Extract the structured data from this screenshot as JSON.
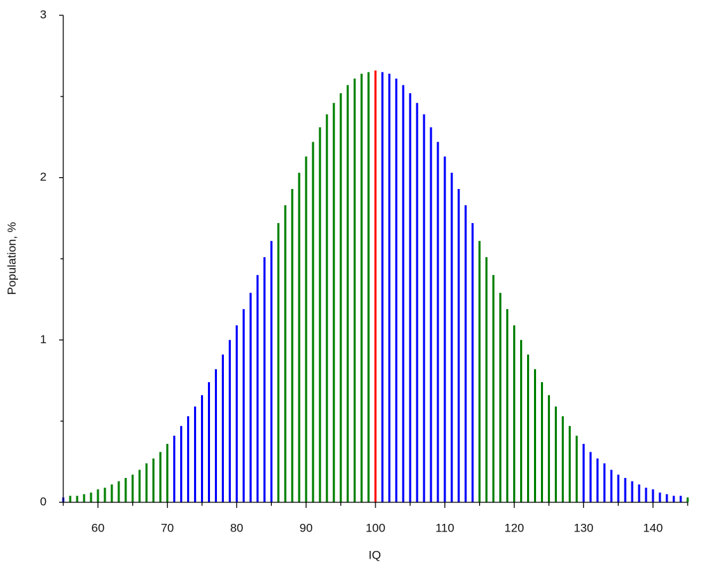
{
  "chart_data": {
    "type": "bar",
    "x_label": "IQ",
    "y_label": "Population, %",
    "x": [
      55,
      56,
      57,
      58,
      59,
      60,
      61,
      62,
      63,
      64,
      65,
      66,
      67,
      68,
      69,
      70,
      71,
      72,
      73,
      74,
      75,
      76,
      77,
      78,
      79,
      80,
      81,
      82,
      83,
      84,
      85,
      86,
      87,
      88,
      89,
      90,
      91,
      92,
      93,
      94,
      95,
      96,
      97,
      98,
      99,
      100,
      101,
      102,
      103,
      104,
      105,
      106,
      107,
      108,
      109,
      110,
      111,
      112,
      113,
      114,
      115,
      116,
      117,
      118,
      119,
      120,
      121,
      122,
      123,
      124,
      125,
      126,
      127,
      128,
      129,
      130,
      131,
      132,
      133,
      134,
      135,
      136,
      137,
      138,
      139,
      140,
      141,
      142,
      143,
      144,
      145
    ],
    "values": [
      0.03,
      0.04,
      0.04,
      0.05,
      0.06,
      0.08,
      0.09,
      0.11,
      0.13,
      0.15,
      0.17,
      0.2,
      0.24,
      0.27,
      0.31,
      0.36,
      0.41,
      0.47,
      0.53,
      0.59,
      0.66,
      0.74,
      0.82,
      0.91,
      1.0,
      1.09,
      1.19,
      1.29,
      1.4,
      1.51,
      1.61,
      1.72,
      1.83,
      1.93,
      2.03,
      2.13,
      2.22,
      2.31,
      2.39,
      2.46,
      2.52,
      2.57,
      2.61,
      2.64,
      2.65,
      2.66,
      2.65,
      2.64,
      2.61,
      2.57,
      2.52,
      2.46,
      2.39,
      2.31,
      2.22,
      2.13,
      2.03,
      1.93,
      1.83,
      1.72,
      1.61,
      1.51,
      1.4,
      1.29,
      1.19,
      1.09,
      1.0,
      0.91,
      0.82,
      0.74,
      0.66,
      0.59,
      0.53,
      0.47,
      0.41,
      0.36,
      0.31,
      0.27,
      0.24,
      0.2,
      0.17,
      0.15,
      0.13,
      0.11,
      0.09,
      0.08,
      0.06,
      0.05,
      0.04,
      0.04,
      0.03
    ],
    "colors": [
      "#0000ff",
      "#008000",
      "#008000",
      "#008000",
      "#008000",
      "#008000",
      "#008000",
      "#008000",
      "#008000",
      "#008000",
      "#008000",
      "#008000",
      "#008000",
      "#008000",
      "#008000",
      "#008000",
      "#0000ff",
      "#0000ff",
      "#0000ff",
      "#0000ff",
      "#0000ff",
      "#0000ff",
      "#0000ff",
      "#0000ff",
      "#0000ff",
      "#0000ff",
      "#0000ff",
      "#0000ff",
      "#0000ff",
      "#0000ff",
      "#0000ff",
      "#008000",
      "#008000",
      "#008000",
      "#008000",
      "#008000",
      "#008000",
      "#008000",
      "#008000",
      "#008000",
      "#008000",
      "#008000",
      "#008000",
      "#008000",
      "#008000",
      "#ff0000",
      "#0000ff",
      "#0000ff",
      "#0000ff",
      "#0000ff",
      "#0000ff",
      "#0000ff",
      "#0000ff",
      "#0000ff",
      "#0000ff",
      "#0000ff",
      "#0000ff",
      "#0000ff",
      "#0000ff",
      "#0000ff",
      "#008000",
      "#008000",
      "#008000",
      "#008000",
      "#008000",
      "#008000",
      "#008000",
      "#008000",
      "#008000",
      "#008000",
      "#008000",
      "#008000",
      "#008000",
      "#008000",
      "#008000",
      "#0000ff",
      "#0000ff",
      "#0000ff",
      "#0000ff",
      "#0000ff",
      "#0000ff",
      "#0000ff",
      "#0000ff",
      "#0000ff",
      "#0000ff",
      "#0000ff",
      "#0000ff",
      "#0000ff",
      "#0000ff",
      "#0000ff",
      "#008000"
    ],
    "xlim": [
      55,
      145
    ],
    "xticks": [
      60,
      70,
      80,
      90,
      100,
      110,
      120,
      130,
      140
    ],
    "xminorticks": [
      55,
      65,
      75,
      85,
      95,
      105,
      115,
      125,
      135,
      145
    ],
    "ylim": [
      0,
      3
    ],
    "yticks": [
      0,
      1,
      2,
      3
    ],
    "yminorticks": [
      0.5,
      1.5,
      2.5
    ]
  }
}
